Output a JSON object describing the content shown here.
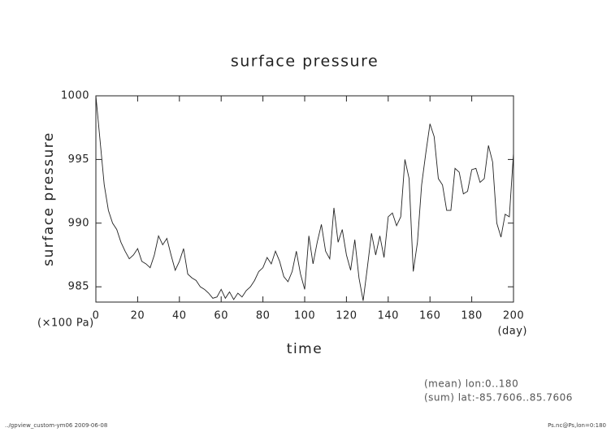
{
  "chart_data": {
    "type": "line",
    "title": "surface pressure",
    "ylabel": "surface pressure",
    "xlabel": "time",
    "yunit": "(×100 Pa)",
    "xunit": "(day)",
    "notes": [
      "(mean) lon:0..180",
      "(sum) lat:-85.7606..85.7606"
    ],
    "footer_left": "../gpview_custom-ym06  2009-06-08",
    "footer_right": "Ps.nc@Ps,lon=0:180",
    "xlim": [
      0,
      200
    ],
    "ylim": [
      983.8,
      1000
    ],
    "xticks": [
      0,
      20,
      40,
      60,
      80,
      100,
      120,
      140,
      160,
      180,
      200
    ],
    "yticks": [
      985,
      990,
      995,
      1000
    ],
    "x": [
      0,
      2,
      4,
      6,
      8,
      10,
      12,
      14,
      16,
      18,
      20,
      22,
      24,
      26,
      28,
      30,
      32,
      34,
      36,
      38,
      40,
      42,
      44,
      46,
      48,
      50,
      52,
      54,
      56,
      58,
      60,
      62,
      64,
      66,
      68,
      70,
      72,
      74,
      76,
      78,
      80,
      82,
      84,
      86,
      88,
      90,
      92,
      94,
      96,
      98,
      100,
      102,
      104,
      106,
      108,
      110,
      112,
      114,
      116,
      118,
      120,
      122,
      124,
      126,
      128,
      130,
      132,
      134,
      136,
      138,
      140,
      142,
      144,
      146,
      148,
      150,
      152,
      154,
      156,
      158,
      160,
      162,
      164,
      166,
      168,
      170,
      172,
      174,
      176,
      178,
      180,
      182,
      184,
      186,
      188,
      190,
      192,
      194,
      196,
      198,
      200
    ],
    "series": [
      {
        "color": "#222222",
        "values": [
          1000,
          996.5,
          993,
          991,
          990,
          989.5,
          988.5,
          987.8,
          987.2,
          987.5,
          988,
          987,
          986.8,
          986.5,
          987.5,
          989,
          988.3,
          988.8,
          987.5,
          986.3,
          987,
          988,
          986,
          985.7,
          985.5,
          985,
          984.8,
          984.5,
          984.1,
          984.2,
          984.8,
          984.1,
          984.6,
          984.0,
          984.5,
          984.2,
          984.7,
          985,
          985.5,
          986.2,
          986.5,
          987.3,
          986.8,
          987.8,
          987,
          985.8,
          985.4,
          986.2,
          987.8,
          986,
          984.8,
          989,
          986.8,
          988.5,
          989.9,
          987.8,
          987.2,
          991.2,
          988.5,
          989.5,
          987.5,
          986.3,
          988.7,
          985.7,
          983.9,
          986.5,
          989.2,
          987.5,
          989,
          987.3,
          990.5,
          990.8,
          989.8,
          990.5,
          995,
          993.5,
          986.2,
          988.5,
          993,
          995.5,
          997.8,
          996.8,
          993.5,
          993,
          991,
          991,
          994.3,
          994,
          992.3,
          992.5,
          994.2,
          994.3,
          993.2,
          993.5,
          996.1,
          994.8,
          990,
          988.9,
          990.7,
          990.5,
          995.5
        ]
      }
    ]
  }
}
